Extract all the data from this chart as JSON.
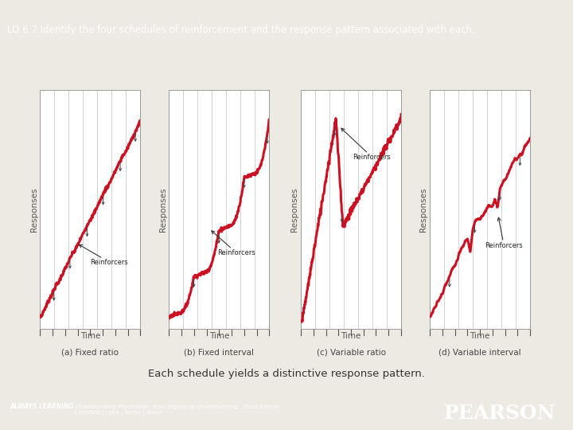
{
  "title": "LO 6.7 Identify the four schedules of reinforcement and the response pattern associated with each.",
  "title_bg": "#c0392b",
  "title_color": "#ffffff",
  "main_bg": "#ede9e3",
  "plot_bg": "#ffffff",
  "subtitle": "Each schedule yields a distinctive response pattern.",
  "subtitle_color": "#333333",
  "footer_bg": "#c0392b",
  "footer_text1": "ALWAYS LEARNING",
  "footer_text2": "Understanding Psychology: from Inquiry to Understanding , Third Edition\nLillenfeld | Lynn | Namy | Woolf",
  "footer_brand": "PEARSON",
  "charts": [
    {
      "label": "(a) Fixed ratio",
      "xlabel": "Time",
      "ylabel": "Responses",
      "annotation": "Reinforcers"
    },
    {
      "label": "(b) Fixed interval",
      "xlabel": "Time",
      "ylabel": "Responses",
      "annotation": "Reinforcers"
    },
    {
      "label": "(c) Variable ratio",
      "xlabel": "Time",
      "ylabel": "Responses",
      "annotation": "Reinforcers"
    },
    {
      "label": "(d) Variable interval",
      "xlabel": "Time",
      "ylabel": "Responses",
      "annotation": "Reinforcers"
    }
  ],
  "line_color": "#cc1122",
  "line_color2": "#444444",
  "grid_color": "#cccccc",
  "tick_color": "#555555"
}
